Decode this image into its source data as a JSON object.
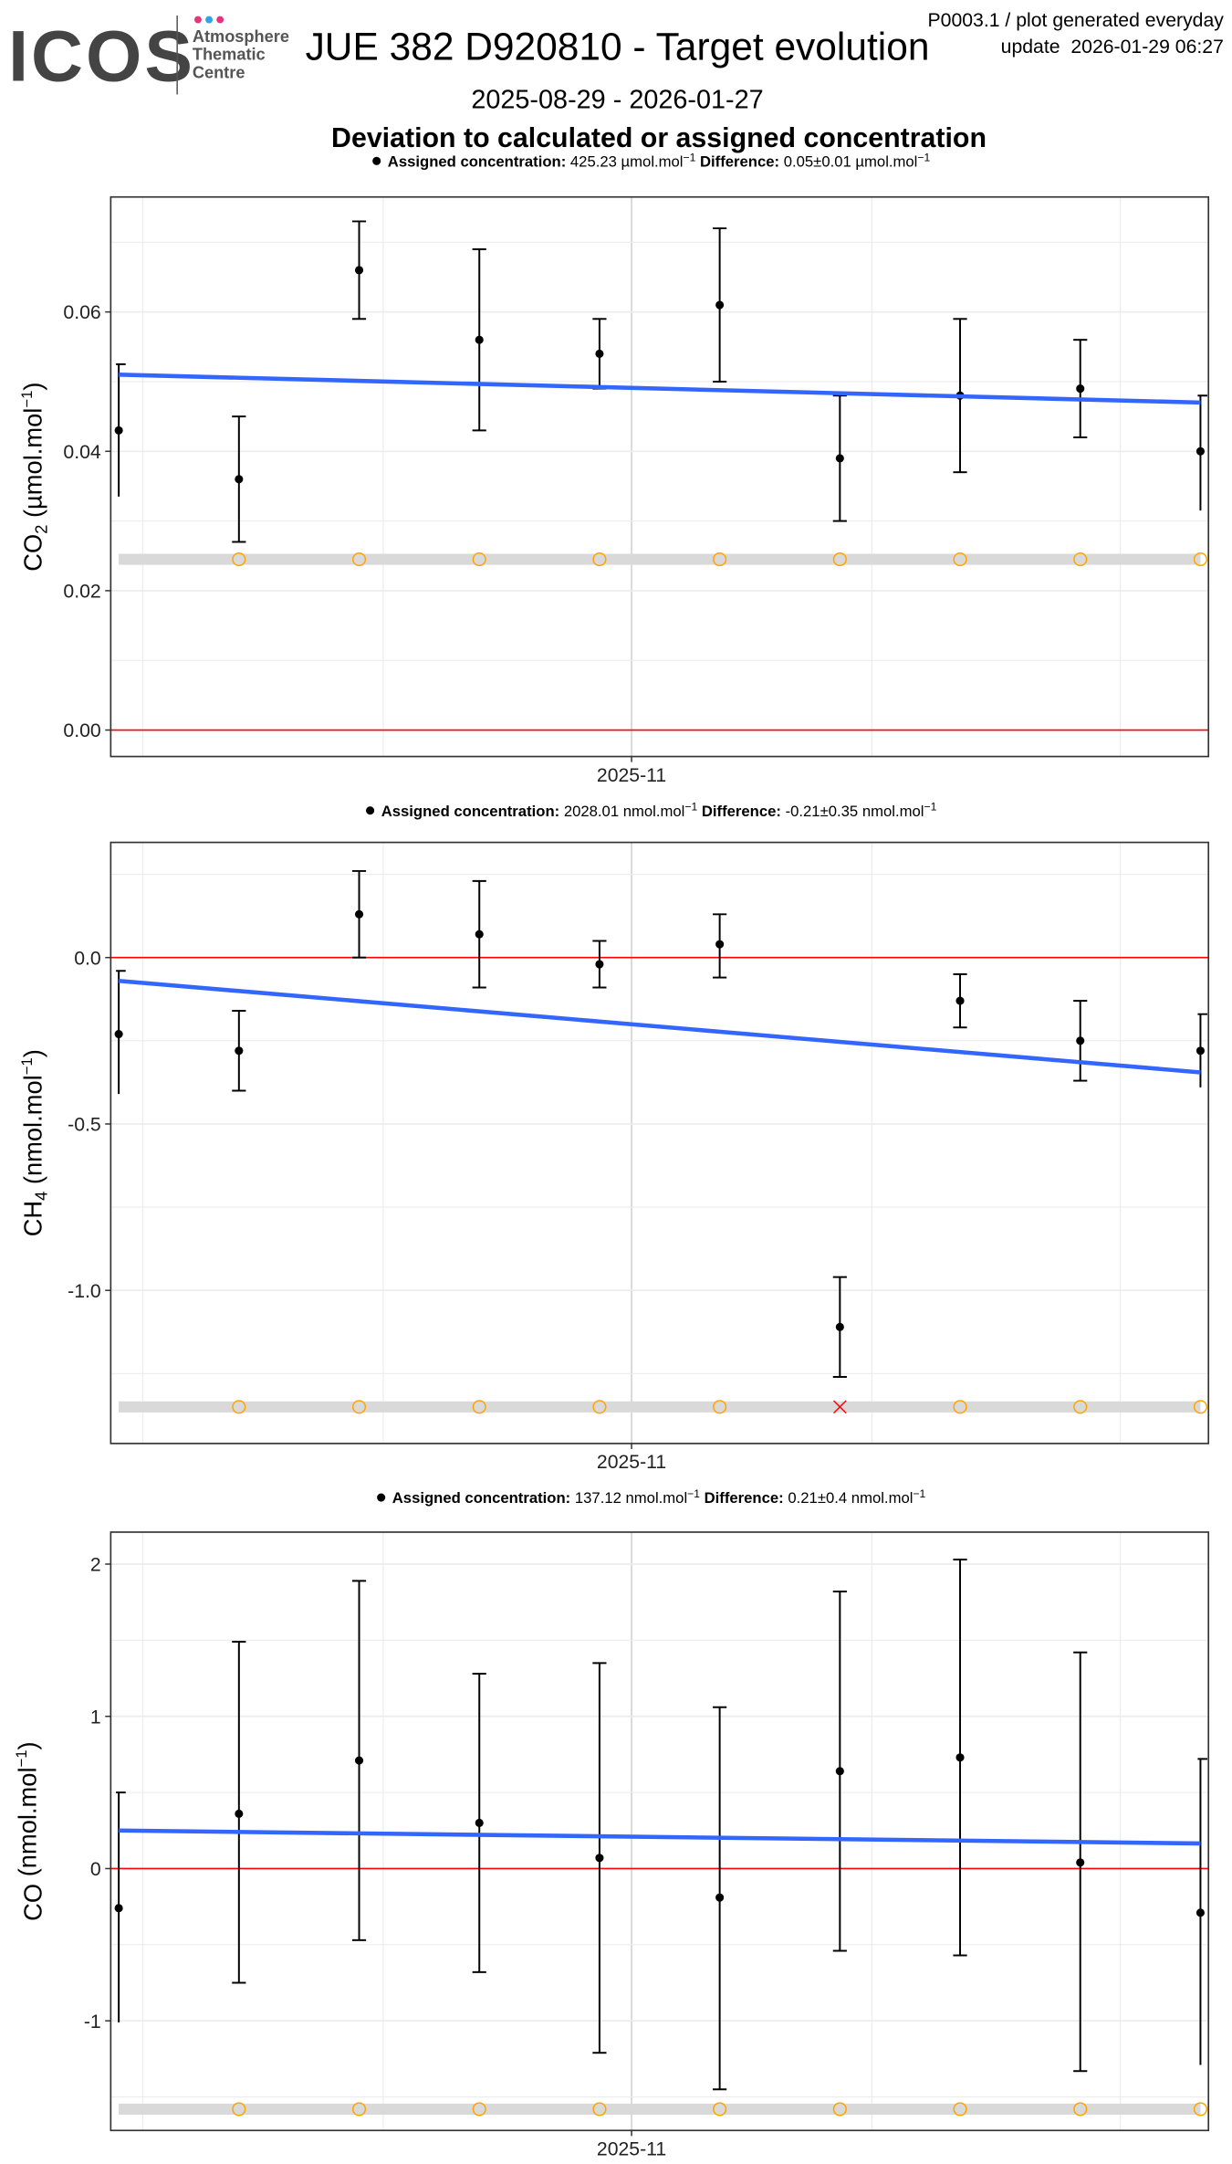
{
  "header": {
    "logo": {
      "text": "ICOS",
      "lines": [
        "Atmosphere",
        "Thematic",
        "Centre"
      ],
      "dot_colors": [
        "#e6357c",
        "#2ba6e1",
        "#e6357c"
      ]
    },
    "title": "JUE 382 D920810 - Target evolution",
    "info_line1": "P0003.1 / plot generated everyday",
    "info_line2": "update  2026-01-29 06:27",
    "date_range": "2025-08-29 - 2026-01-27",
    "heading": "Deviation to calculated or assigned concentration"
  },
  "colors": {
    "points": "#000000",
    "trend": "#3366ff",
    "zero_line": "#ff0000",
    "band": "#d9d9d9",
    "flag_ok": "#ffa500",
    "flag_bad": "#ff0000"
  },
  "chart_data": [
    {
      "type": "scatter",
      "species": "CO",
      "species_sub": "2",
      "ylabel_unit": "(µmol.mol",
      "ylabel_sup": "−1",
      "ylabel_close": ")",
      "subtitle": {
        "assigned_label": "Assigned concentration:",
        "assigned_value": "425.23",
        "unit": "µmol.mol",
        "sup": "−1",
        "difference_label": "Difference:",
        "difference_value": "0.05",
        "pm": "±",
        "difference_uncertainty": "0.01"
      },
      "x_tick": "2025-11",
      "xlim": [
        "2025-08-28",
        "2026-01-12"
      ],
      "ylim": [
        -0.0038,
        0.0765
      ],
      "y_ticks": [
        "0.00",
        "0.02",
        "0.04",
        "0.06"
      ],
      "y_tick_values": [
        0,
        0.02,
        0.04,
        0.06
      ],
      "x": [
        "2025-08-29",
        "2025-09-13",
        "2025-09-28",
        "2025-10-13",
        "2025-10-28",
        "2025-11-12",
        "2025-11-27",
        "2025-12-12",
        "2025-12-27",
        "2026-01-11"
      ],
      "y": [
        0.043,
        0.036,
        0.066,
        0.056,
        0.054,
        0.061,
        0.039,
        0.048,
        0.049,
        0.04
      ],
      "y_low": [
        0.0335,
        0.027,
        0.059,
        0.043,
        0.049,
        0.05,
        0.03,
        0.037,
        0.042,
        0.0315
      ],
      "y_high": [
        0.0525,
        0.045,
        0.073,
        0.069,
        0.059,
        0.072,
        0.048,
        0.059,
        0.056,
        0.048
      ],
      "trend": [
        0.051,
        0.047
      ],
      "flag_level": 0.0245,
      "flags": [
        "",
        "ok",
        "ok",
        "ok",
        "ok",
        "ok",
        "ok",
        "ok",
        "ok",
        "ok"
      ],
      "grid": true
    },
    {
      "type": "scatter",
      "species": "CH",
      "species_sub": "4",
      "ylabel_unit": "(nmol.mol",
      "ylabel_sup": "−1",
      "ylabel_close": ")",
      "subtitle": {
        "assigned_label": "Assigned concentration:",
        "assigned_value": "2028.01",
        "unit": "nmol.mol",
        "sup": "−1",
        "difference_label": "Difference:",
        "difference_value": "-0.21",
        "pm": "±",
        "difference_uncertainty": "0.35"
      },
      "x_tick": "2025-11",
      "xlim": [
        "2025-08-28",
        "2026-01-12"
      ],
      "ylim": [
        -1.46,
        0.346
      ],
      "y_ticks": [
        "-1.0",
        "-0.5",
        "0.0"
      ],
      "y_tick_values": [
        -1.0,
        -0.5,
        0.0
      ],
      "x": [
        "2025-08-29",
        "2025-09-13",
        "2025-09-28",
        "2025-10-13",
        "2025-10-28",
        "2025-11-12",
        "2025-11-27",
        "2025-12-12",
        "2025-12-27",
        "2026-01-11"
      ],
      "y": [
        -0.23,
        -0.28,
        0.13,
        0.07,
        -0.02,
        0.04,
        -1.11,
        -0.13,
        -0.25,
        -0.28
      ],
      "y_low": [
        -0.41,
        -0.4,
        0.0,
        -0.09,
        -0.09,
        -0.06,
        -1.26,
        -0.21,
        -0.37,
        -0.39
      ],
      "y_high": [
        -0.04,
        -0.16,
        0.26,
        0.23,
        0.05,
        0.13,
        -0.96,
        -0.05,
        -0.13,
        -0.17
      ],
      "trend": [
        -0.07,
        -0.345
      ],
      "flag_level": -1.35,
      "flags": [
        "",
        "ok",
        "ok",
        "ok",
        "ok",
        "ok",
        "bad",
        "ok",
        "ok",
        "ok"
      ],
      "grid": true
    },
    {
      "type": "scatter",
      "species": "CO",
      "species_sub": "",
      "ylabel_unit": "(nmol.mol",
      "ylabel_sup": "−1",
      "ylabel_close": ")",
      "subtitle": {
        "assigned_label": "Assigned concentration:",
        "assigned_value": "137.12",
        "unit": "nmol.mol",
        "sup": "−1",
        "difference_label": "Difference:",
        "difference_value": "0.21",
        "pm": "±",
        "difference_uncertainty": "0.4"
      },
      "x_tick": "2025-11",
      "xlim": [
        "2025-08-28",
        "2026-01-12"
      ],
      "ylim": [
        -1.72,
        2.21
      ],
      "y_ticks": [
        "-1",
        "0",
        "1",
        "2"
      ],
      "y_tick_values": [
        -1,
        0,
        1,
        2
      ],
      "x": [
        "2025-08-29",
        "2025-09-13",
        "2025-09-28",
        "2025-10-13",
        "2025-10-28",
        "2025-11-12",
        "2025-11-27",
        "2025-12-12",
        "2025-12-27",
        "2026-01-11"
      ],
      "y": [
        -0.26,
        0.36,
        0.71,
        0.3,
        0.07,
        -0.19,
        0.64,
        0.73,
        0.04,
        -0.29
      ],
      "y_low": [
        -1.01,
        -0.75,
        -0.47,
        -0.68,
        -1.21,
        -1.45,
        -0.54,
        -0.57,
        -1.33,
        -1.29
      ],
      "y_high": [
        0.5,
        1.49,
        1.89,
        1.28,
        1.35,
        1.06,
        1.82,
        2.03,
        1.42,
        0.72
      ],
      "trend": [
        0.25,
        0.165
      ],
      "flag_level": -1.58,
      "flags": [
        "",
        "ok",
        "ok",
        "ok",
        "ok",
        "ok",
        "ok",
        "ok",
        "ok",
        "ok"
      ],
      "grid": true
    }
  ]
}
